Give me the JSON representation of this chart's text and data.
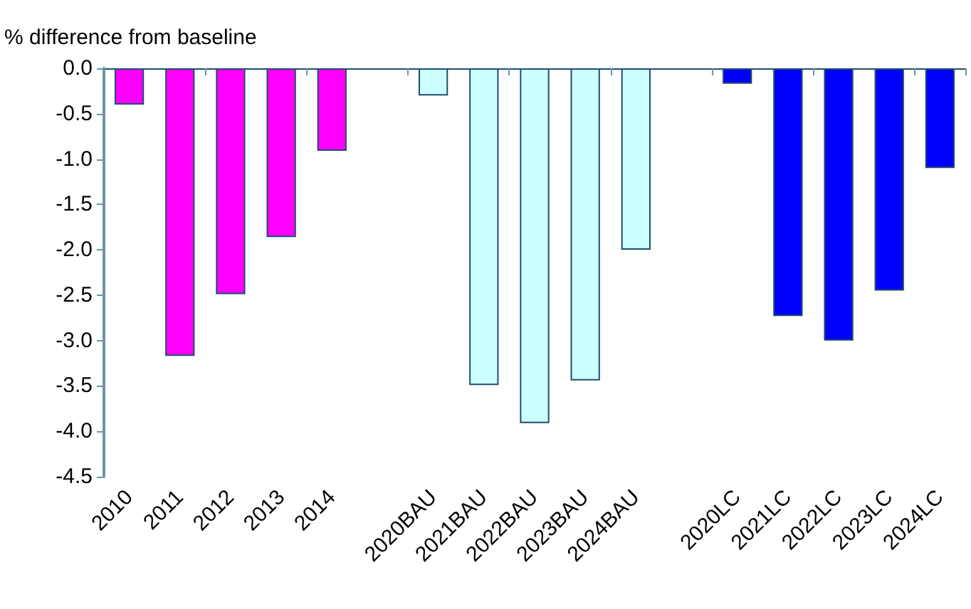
{
  "chart_data": {
    "type": "bar",
    "ylabel": "% difference from baseline",
    "categories": [
      "2010",
      "2011",
      "2012",
      "2013",
      "2014",
      null,
      "2020BAU",
      "2021BAU",
      "2022BAU",
      "2023BAU",
      "2024BAU",
      null,
      "2020LC",
      "2021LC",
      "2022LC",
      "2023LC",
      "2024LC"
    ],
    "values": [
      -0.4,
      -3.17,
      -2.49,
      -1.86,
      -0.91,
      null,
      -0.3,
      -3.49,
      -3.91,
      -3.44,
      -2.0,
      null,
      -0.17,
      -2.73,
      -3.0,
      -2.45,
      -1.1
    ],
    "colors": [
      "#ff00ff",
      "#ff00ff",
      "#ff00ff",
      "#ff00ff",
      "#ff00ff",
      "#ffffff",
      "#ccffff",
      "#ccffff",
      "#ccffff",
      "#ccffff",
      "#ccffff",
      "#ffffff",
      "#0000ff",
      "#0000ff",
      "#0000ff",
      "#0000ff",
      "#0000ff"
    ],
    "ylim": [
      -4.5,
      0
    ],
    "yticks": [
      {
        "value": 0,
        "label": "0.0"
      },
      {
        "value": -0.5,
        "label": "-0.5"
      },
      {
        "value": -1,
        "label": "-1.0"
      },
      {
        "value": -1.5,
        "label": "-1.5"
      },
      {
        "value": -2,
        "label": "-2.0"
      },
      {
        "value": -2.5,
        "label": "-2.5"
      },
      {
        "value": -3,
        "label": "-3.0"
      },
      {
        "value": -3.5,
        "label": "-3.5"
      },
      {
        "value": -4,
        "label": "-4.0"
      },
      {
        "value": -4.5,
        "label": "-4.5"
      }
    ],
    "grid": false
  }
}
